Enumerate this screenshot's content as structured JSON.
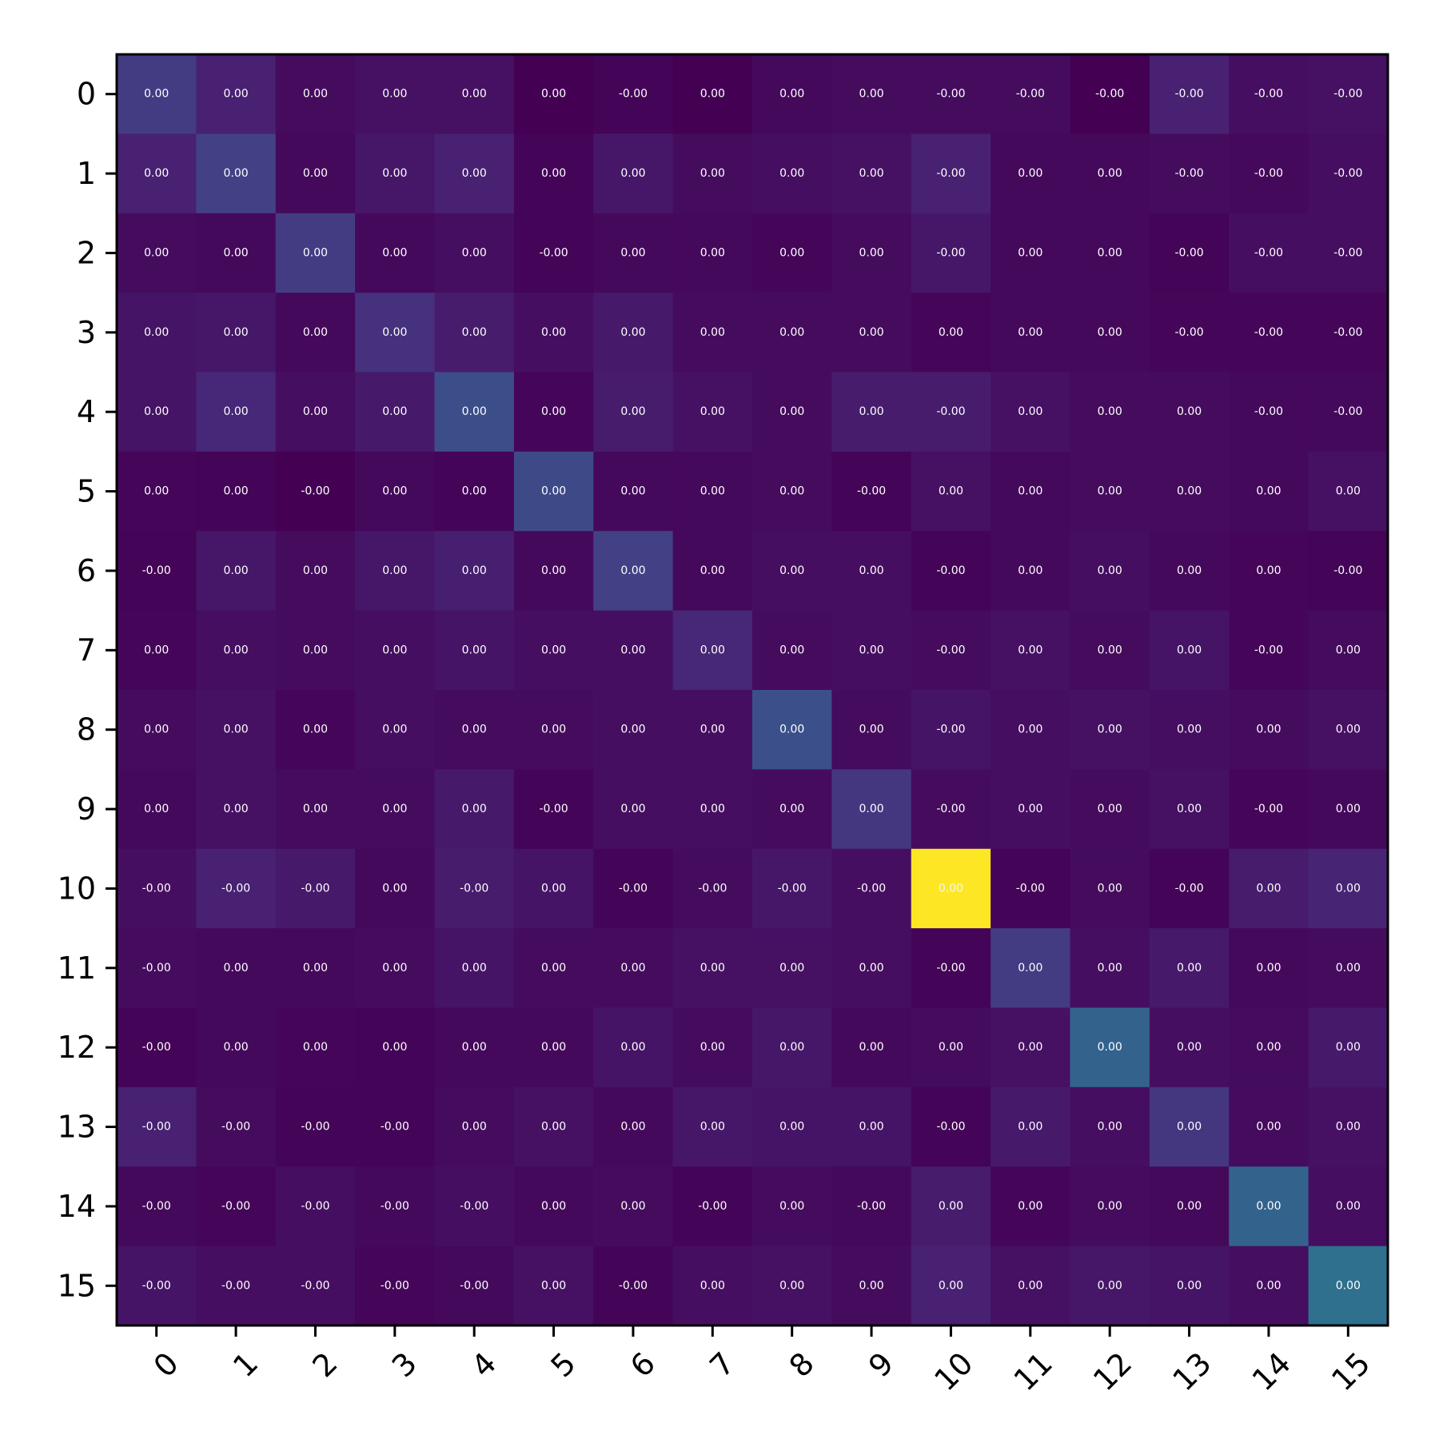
{
  "chart_data": {
    "type": "heatmap",
    "title": "",
    "xlabel": "",
    "ylabel": "",
    "colormap": "viridis",
    "x_categories": [
      "0",
      "1",
      "2",
      "3",
      "4",
      "5",
      "6",
      "7",
      "8",
      "9",
      "10",
      "11",
      "12",
      "13",
      "14",
      "15"
    ],
    "y_categories": [
      "0",
      "1",
      "2",
      "3",
      "4",
      "5",
      "6",
      "7",
      "8",
      "9",
      "10",
      "11",
      "12",
      "13",
      "14",
      "15"
    ],
    "intensity": [
      [
        0.22,
        0.12,
        0.04,
        0.06,
        0.06,
        0.0,
        0.01,
        0.0,
        0.03,
        0.04,
        0.04,
        0.04,
        0.0,
        0.12,
        0.05,
        0.06
      ],
      [
        0.12,
        0.24,
        0.03,
        0.08,
        0.12,
        0.01,
        0.08,
        0.04,
        0.05,
        0.06,
        0.12,
        0.03,
        0.03,
        0.04,
        0.03,
        0.05
      ],
      [
        0.04,
        0.03,
        0.22,
        0.03,
        0.05,
        0.01,
        0.03,
        0.03,
        0.02,
        0.04,
        0.08,
        0.03,
        0.03,
        0.01,
        0.05,
        0.05
      ],
      [
        0.07,
        0.08,
        0.03,
        0.18,
        0.1,
        0.05,
        0.09,
        0.04,
        0.04,
        0.04,
        0.02,
        0.03,
        0.03,
        0.02,
        0.02,
        0.02
      ],
      [
        0.07,
        0.14,
        0.05,
        0.09,
        0.3,
        0.02,
        0.1,
        0.06,
        0.04,
        0.1,
        0.1,
        0.06,
        0.04,
        0.04,
        0.03,
        0.03
      ],
      [
        0.02,
        0.01,
        0.0,
        0.03,
        0.01,
        0.28,
        0.03,
        0.03,
        0.04,
        0.01,
        0.06,
        0.03,
        0.04,
        0.04,
        0.03,
        0.06
      ],
      [
        0.01,
        0.08,
        0.04,
        0.08,
        0.11,
        0.03,
        0.24,
        0.03,
        0.05,
        0.05,
        0.01,
        0.03,
        0.05,
        0.03,
        0.02,
        0.01
      ],
      [
        0.02,
        0.05,
        0.04,
        0.05,
        0.07,
        0.05,
        0.05,
        0.14,
        0.04,
        0.05,
        0.04,
        0.06,
        0.04,
        0.07,
        0.02,
        0.04
      ],
      [
        0.04,
        0.06,
        0.02,
        0.05,
        0.04,
        0.04,
        0.05,
        0.05,
        0.31,
        0.04,
        0.07,
        0.05,
        0.06,
        0.05,
        0.04,
        0.06
      ],
      [
        0.03,
        0.06,
        0.04,
        0.04,
        0.09,
        0.01,
        0.05,
        0.05,
        0.04,
        0.2,
        0.04,
        0.05,
        0.04,
        0.06,
        0.02,
        0.03
      ],
      [
        0.05,
        0.12,
        0.09,
        0.03,
        0.1,
        0.07,
        0.01,
        0.04,
        0.08,
        0.05,
        1.0,
        0.01,
        0.04,
        0.01,
        0.1,
        0.13
      ],
      [
        0.04,
        0.03,
        0.03,
        0.04,
        0.07,
        0.04,
        0.04,
        0.06,
        0.06,
        0.05,
        0.01,
        0.22,
        0.05,
        0.09,
        0.03,
        0.04
      ],
      [
        0.01,
        0.03,
        0.02,
        0.01,
        0.03,
        0.03,
        0.07,
        0.04,
        0.08,
        0.03,
        0.04,
        0.06,
        0.4,
        0.05,
        0.04,
        0.09
      ],
      [
        0.12,
        0.04,
        0.01,
        0.01,
        0.04,
        0.06,
        0.03,
        0.08,
        0.07,
        0.07,
        0.01,
        0.09,
        0.05,
        0.2,
        0.04,
        0.06
      ],
      [
        0.03,
        0.02,
        0.05,
        0.03,
        0.05,
        0.03,
        0.04,
        0.01,
        0.04,
        0.03,
        0.1,
        0.02,
        0.04,
        0.03,
        0.4,
        0.05
      ],
      [
        0.07,
        0.05,
        0.05,
        0.02,
        0.03,
        0.06,
        0.01,
        0.05,
        0.06,
        0.04,
        0.12,
        0.06,
        0.08,
        0.07,
        0.05,
        0.46
      ]
    ],
    "labels": [
      [
        "0.00",
        "0.00",
        "0.00",
        "0.00",
        "0.00",
        "0.00",
        "-0.00",
        "0.00",
        "0.00",
        "0.00",
        "-0.00",
        "-0.00",
        "-0.00",
        "-0.00",
        "-0.00",
        "-0.00"
      ],
      [
        "0.00",
        "0.00",
        "0.00",
        "0.00",
        "0.00",
        "0.00",
        "0.00",
        "0.00",
        "0.00",
        "0.00",
        "-0.00",
        "0.00",
        "0.00",
        "-0.00",
        "-0.00",
        "-0.00"
      ],
      [
        "0.00",
        "0.00",
        "0.00",
        "0.00",
        "0.00",
        "-0.00",
        "0.00",
        "0.00",
        "0.00",
        "0.00",
        "-0.00",
        "0.00",
        "0.00",
        "-0.00",
        "-0.00",
        "-0.00"
      ],
      [
        "0.00",
        "0.00",
        "0.00",
        "0.00",
        "0.00",
        "0.00",
        "0.00",
        "0.00",
        "0.00",
        "0.00",
        "0.00",
        "0.00",
        "0.00",
        "-0.00",
        "-0.00",
        "-0.00"
      ],
      [
        "0.00",
        "0.00",
        "0.00",
        "0.00",
        "0.00",
        "0.00",
        "0.00",
        "0.00",
        "0.00",
        "0.00",
        "-0.00",
        "0.00",
        "0.00",
        "0.00",
        "-0.00",
        "-0.00"
      ],
      [
        "0.00",
        "0.00",
        "-0.00",
        "0.00",
        "0.00",
        "0.00",
        "0.00",
        "0.00",
        "0.00",
        "-0.00",
        "0.00",
        "0.00",
        "0.00",
        "0.00",
        "0.00",
        "0.00"
      ],
      [
        "-0.00",
        "0.00",
        "0.00",
        "0.00",
        "0.00",
        "0.00",
        "0.00",
        "0.00",
        "0.00",
        "0.00",
        "-0.00",
        "0.00",
        "0.00",
        "0.00",
        "0.00",
        "-0.00"
      ],
      [
        "0.00",
        "0.00",
        "0.00",
        "0.00",
        "0.00",
        "0.00",
        "0.00",
        "0.00",
        "0.00",
        "0.00",
        "-0.00",
        "0.00",
        "0.00",
        "0.00",
        "-0.00",
        "0.00"
      ],
      [
        "0.00",
        "0.00",
        "0.00",
        "0.00",
        "0.00",
        "0.00",
        "0.00",
        "0.00",
        "0.00",
        "0.00",
        "-0.00",
        "0.00",
        "0.00",
        "0.00",
        "0.00",
        "0.00"
      ],
      [
        "0.00",
        "0.00",
        "0.00",
        "0.00",
        "0.00",
        "-0.00",
        "0.00",
        "0.00",
        "0.00",
        "0.00",
        "-0.00",
        "0.00",
        "0.00",
        "0.00",
        "-0.00",
        "0.00"
      ],
      [
        "-0.00",
        "-0.00",
        "-0.00",
        "0.00",
        "-0.00",
        "0.00",
        "-0.00",
        "-0.00",
        "-0.00",
        "-0.00",
        "0.00",
        "-0.00",
        "0.00",
        "-0.00",
        "0.00",
        "0.00"
      ],
      [
        "-0.00",
        "0.00",
        "0.00",
        "0.00",
        "0.00",
        "0.00",
        "0.00",
        "0.00",
        "0.00",
        "0.00",
        "-0.00",
        "0.00",
        "0.00",
        "0.00",
        "0.00",
        "0.00"
      ],
      [
        "-0.00",
        "0.00",
        "0.00",
        "0.00",
        "0.00",
        "0.00",
        "0.00",
        "0.00",
        "0.00",
        "0.00",
        "0.00",
        "0.00",
        "0.00",
        "0.00",
        "0.00",
        "0.00"
      ],
      [
        "-0.00",
        "-0.00",
        "-0.00",
        "-0.00",
        "0.00",
        "0.00",
        "0.00",
        "0.00",
        "0.00",
        "0.00",
        "-0.00",
        "0.00",
        "0.00",
        "0.00",
        "0.00",
        "0.00"
      ],
      [
        "-0.00",
        "-0.00",
        "-0.00",
        "-0.00",
        "-0.00",
        "0.00",
        "0.00",
        "-0.00",
        "0.00",
        "-0.00",
        "0.00",
        "0.00",
        "0.00",
        "0.00",
        "0.00",
        "0.00"
      ],
      [
        "-0.00",
        "-0.00",
        "-0.00",
        "-0.00",
        "-0.00",
        "0.00",
        "-0.00",
        "0.00",
        "0.00",
        "0.00",
        "0.00",
        "0.00",
        "0.00",
        "0.00",
        "0.00",
        "0.00"
      ]
    ],
    "grid": false,
    "legend": "none"
  }
}
